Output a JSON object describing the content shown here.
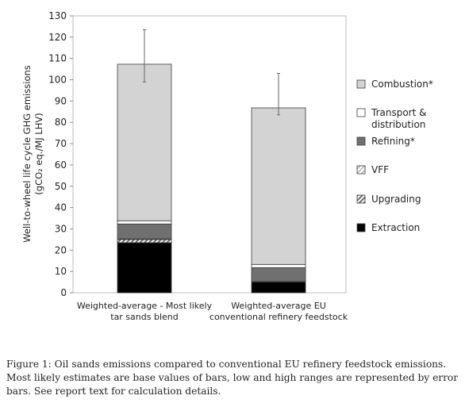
{
  "chart_data": {
    "type": "bar",
    "stacked": true,
    "categories": [
      [
        "Weighted-average - Most likely",
        "tar sands blend"
      ],
      [
        "Weighted-average EU",
        "conventional refinery feedstock"
      ]
    ],
    "ylabel": [
      "Well-to-wheel life cycle GHG emissions",
      "(gCO₂ eq./MJ LHV)"
    ],
    "ylim": [
      0,
      130
    ],
    "yticks": [
      0,
      10,
      20,
      30,
      40,
      50,
      60,
      70,
      80,
      90,
      100,
      110,
      120,
      130
    ],
    "series": [
      {
        "key": "extraction",
        "name": "Extraction",
        "color": "#000000",
        "pattern": "solid",
        "values": [
          23.5,
          5
        ]
      },
      {
        "key": "upgrading",
        "name": "Upgrading",
        "color": "#8c8c8c",
        "pattern": "hatch",
        "values": [
          1.5,
          0
        ]
      },
      {
        "key": "vff",
        "name": "VFF",
        "color": "#c8c8c8",
        "pattern": "hatch",
        "values": [
          0.3,
          0.3
        ]
      },
      {
        "key": "refining",
        "name": "Refining*",
        "color": "#707070",
        "pattern": "solid",
        "values": [
          7,
          6.5
        ]
      },
      {
        "key": "transport",
        "name": "Transport & distribution",
        "legend_lines": [
          "Transport &",
          "distribution"
        ],
        "color": "#ffffff",
        "pattern": "solid",
        "values": [
          1.5,
          1.5
        ]
      },
      {
        "key": "combustion",
        "name": "Combustion*",
        "color": "#d3d3d3",
        "pattern": "solid",
        "values": [
          73.5,
          73.5
        ]
      }
    ],
    "totals": [
      107.3,
      86.8
    ],
    "error_bars": [
      {
        "low": 99,
        "high": 123.5
      },
      {
        "low": 83.5,
        "high": 103
      }
    ],
    "legend_order": [
      "combustion",
      "transport",
      "refining",
      "vff",
      "upgrading",
      "extraction"
    ],
    "legend_position": "right",
    "grid": false
  },
  "caption": {
    "text": "Figure 1: Oil sands emissions compared to conventional EU refinery feedstock emissions. Most likely estimates are base values of bars, low and high ranges are represented by error bars. See report text for calculation details."
  }
}
